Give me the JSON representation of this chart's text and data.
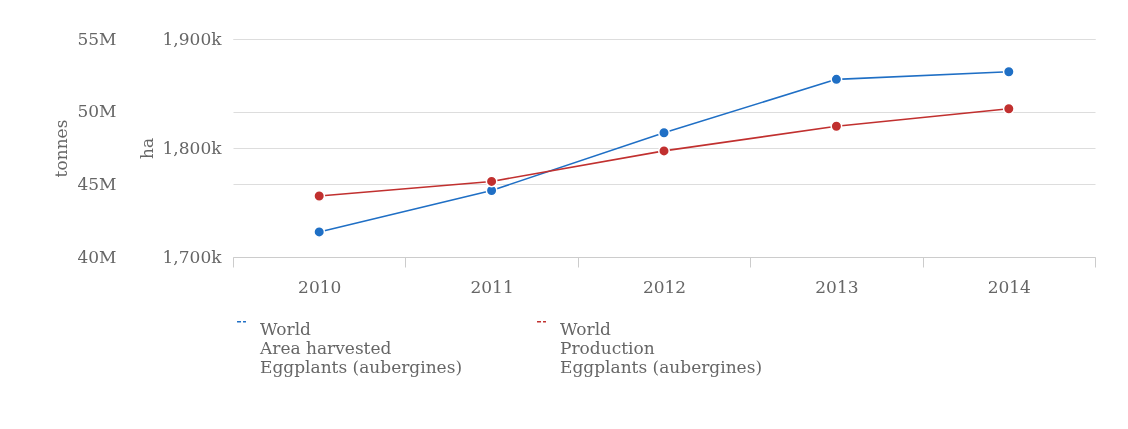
{
  "chart_data": {
    "type": "line",
    "categories": [
      "2010",
      "2011",
      "2012",
      "2013",
      "2014"
    ],
    "series": [
      {
        "name": "World\nArea harvested\nEggplants (aubergines)",
        "color": "#1f6fc5",
        "values": [
          1723000,
          1761000,
          1814000,
          1863000,
          1870000
        ]
      },
      {
        "name": "World\nProduction\nEggplants (aubergines)",
        "color": "#c1302f",
        "axis": "y2",
        "values": [
          44200000,
          45200000,
          47300000,
          49000000,
          50200000
        ]
      }
    ],
    "ylabel": "ha",
    "y2label": "tonnes",
    "ylim": [
      1700000,
      1900000
    ],
    "yticks": [
      {
        "value": 1700000,
        "label": "1,700k"
      },
      {
        "value": 1800000,
        "label": "1,800k"
      },
      {
        "value": 1900000,
        "label": "1,900k"
      }
    ],
    "y2lim": [
      40000000,
      55000000
    ],
    "y2ticks": [
      {
        "value": 40000000,
        "label": "40M"
      },
      {
        "value": 45000000,
        "label": "45M"
      },
      {
        "value": 50000000,
        "label": "50M"
      },
      {
        "value": 55000000,
        "label": "55M"
      }
    ],
    "grid": "y",
    "legend": "bottom",
    "marker": "circle",
    "line_style": "solid"
  }
}
